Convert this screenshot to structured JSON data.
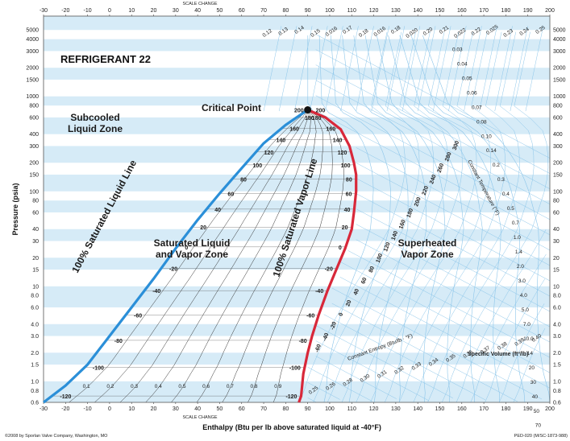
{
  "chart_data": {
    "type": "pressure-enthalpy diagram",
    "title": "REFRIGERANT 22",
    "xlabel": "Enthalpy (Btu per lb above saturated liquid at -40°F)",
    "ylabel": "Pressure (psia)",
    "xlim": [
      -30,
      200
    ],
    "ylim": [
      0.6,
      7000
    ],
    "yscale": "log",
    "x_ticks": [
      -30,
      -20,
      -10,
      0,
      10,
      20,
      30,
      40,
      50,
      60,
      70,
      80,
      90,
      100,
      110,
      120,
      130,
      140,
      150,
      160,
      170,
      180,
      190,
      200
    ],
    "y_ticks_left": [
      "5000",
      "4000",
      "3000",
      "2000",
      "1500",
      "1000",
      "800",
      "600",
      "400",
      "300",
      "200",
      "150",
      "100",
      "80",
      "60",
      "40",
      "30",
      "20",
      "15",
      "10",
      "8.0",
      "6.0",
      "4.0",
      "3.0",
      "2.0",
      "1.5",
      "1.0",
      "0.8",
      "0.6"
    ],
    "y_ticks_right": [
      "5000",
      "4000",
      "3000",
      "2000",
      "1500",
      "1000",
      "800",
      "600",
      "400",
      "300",
      "200",
      "150",
      "100",
      "80",
      "60",
      "40",
      "30",
      "20",
      "15",
      "10",
      "8.0",
      "6.0",
      "4.0",
      "3.0",
      "2.0",
      "1.5",
      "1.0",
      "0.8",
      "0.6"
    ],
    "scale_change": "SCALE CHANGE",
    "zones": {
      "subcooled": "Subcooled\nLiquid Zone",
      "saturated": "Saturated Liquid\nand Vapor Zone",
      "superheated": "Superheated\nVapor Zone",
      "critical": "Critical Point"
    },
    "curve_labels": {
      "liquid": "100% Saturated Liquid Line",
      "vapor": "100% Saturated Vapor Line"
    },
    "critical_point": {
      "h": 90,
      "p": 721
    },
    "saturated_liquid": [
      [
        -30,
        0.6
      ],
      [
        -20,
        0.9
      ],
      [
        -10,
        1.5
      ],
      [
        0,
        3
      ],
      [
        10,
        6
      ],
      [
        20,
        12
      ],
      [
        30,
        25
      ],
      [
        40,
        50
      ],
      [
        50,
        95
      ],
      [
        60,
        175
      ],
      [
        70,
        320
      ],
      [
        80,
        500
      ],
      [
        90,
        721
      ]
    ],
    "saturated_vapor": [
      [
        90,
        721
      ],
      [
        98,
        600
      ],
      [
        105,
        450
      ],
      [
        109,
        300
      ],
      [
        111,
        200
      ],
      [
        112,
        150
      ],
      [
        112,
        100
      ],
      [
        111,
        60
      ],
      [
        110,
        40
      ],
      [
        107,
        25
      ],
      [
        103,
        15
      ],
      [
        99,
        9
      ],
      [
        95,
        5
      ],
      [
        92,
        3
      ],
      [
        90,
        2
      ],
      [
        88,
        1.2
      ],
      [
        87,
        0.7
      ],
      [
        86,
        0.6
      ]
    ],
    "quality_labels": [
      "0.1",
      "0.2",
      "0.3",
      "0.4",
      "0.5",
      "0.6",
      "0.7",
      "0.8",
      "0.9"
    ],
    "liquid_temp_labels": [
      "200",
      "180",
      "160",
      "140",
      "120",
      "100",
      "80",
      "60",
      "40",
      "20",
      "0",
      "-20",
      "-40",
      "-60",
      "-80",
      "-100",
      "-120"
    ],
    "vapor_temp_labels": [
      "200",
      "180",
      "160",
      "140",
      "120",
      "100",
      "80",
      "60",
      "40",
      "20",
      "0",
      "-20",
      "-40",
      "-60",
      "-80",
      "-100",
      "-120"
    ],
    "mid_temp_labels": [
      "300",
      "280",
      "260",
      "240",
      "220",
      "200",
      "180",
      "160",
      "140",
      "120",
      "100",
      "80",
      "60",
      "40",
      "20",
      "0",
      "-20",
      "-40",
      "-60"
    ],
    "top_volume_labels": [
      "0.12",
      "0.13",
      "0.14",
      "0.15",
      "0.016",
      "0.17",
      "0.18",
      "0.016",
      "0.18",
      "0.020",
      "0.20",
      "0.21",
      "0.022",
      "0.22",
      "0.025",
      "0.23",
      "0.24",
      "0.25"
    ],
    "entropy_labels": [
      "0.25",
      "0.26",
      "0.28",
      "0.30",
      "0.31",
      "0.32",
      "0.33",
      "0.34",
      "0.35",
      "0.36",
      "0.37",
      "0.38",
      "0.39",
      "0.40"
    ],
    "volume_labels_right": [
      "0.03",
      "0.04",
      "0.05",
      "0.06",
      "0.07",
      "0.08",
      "0.10",
      "0.14",
      "0.2",
      "0.3",
      "0.4",
      "0.5",
      "0.7",
      "1.0",
      "1.4",
      "2.0",
      "3.0",
      "4.0",
      "5.0",
      "7.0",
      "10.0",
      "14",
      "20",
      "30",
      "40",
      "50",
      "70"
    ],
    "entropy_axis_label": "Constant Entropy (Btu/lb · °F)",
    "volume_axis_label": "Specific Volume (ft³/lb)",
    "temp_axis_label": "Constant Temperature (°F)",
    "footer_left": "©2008 by Sporlan Valve Company, Washington, MO",
    "footer_right": "PED-020 (M/SC-1873-988)",
    "colors": {
      "liquid_line": "#2b8fd8",
      "vapor_line": "#d8283a",
      "band": "#d6ebf7",
      "grid": "#8cc6ea",
      "critical_dot": "#111111"
    }
  }
}
